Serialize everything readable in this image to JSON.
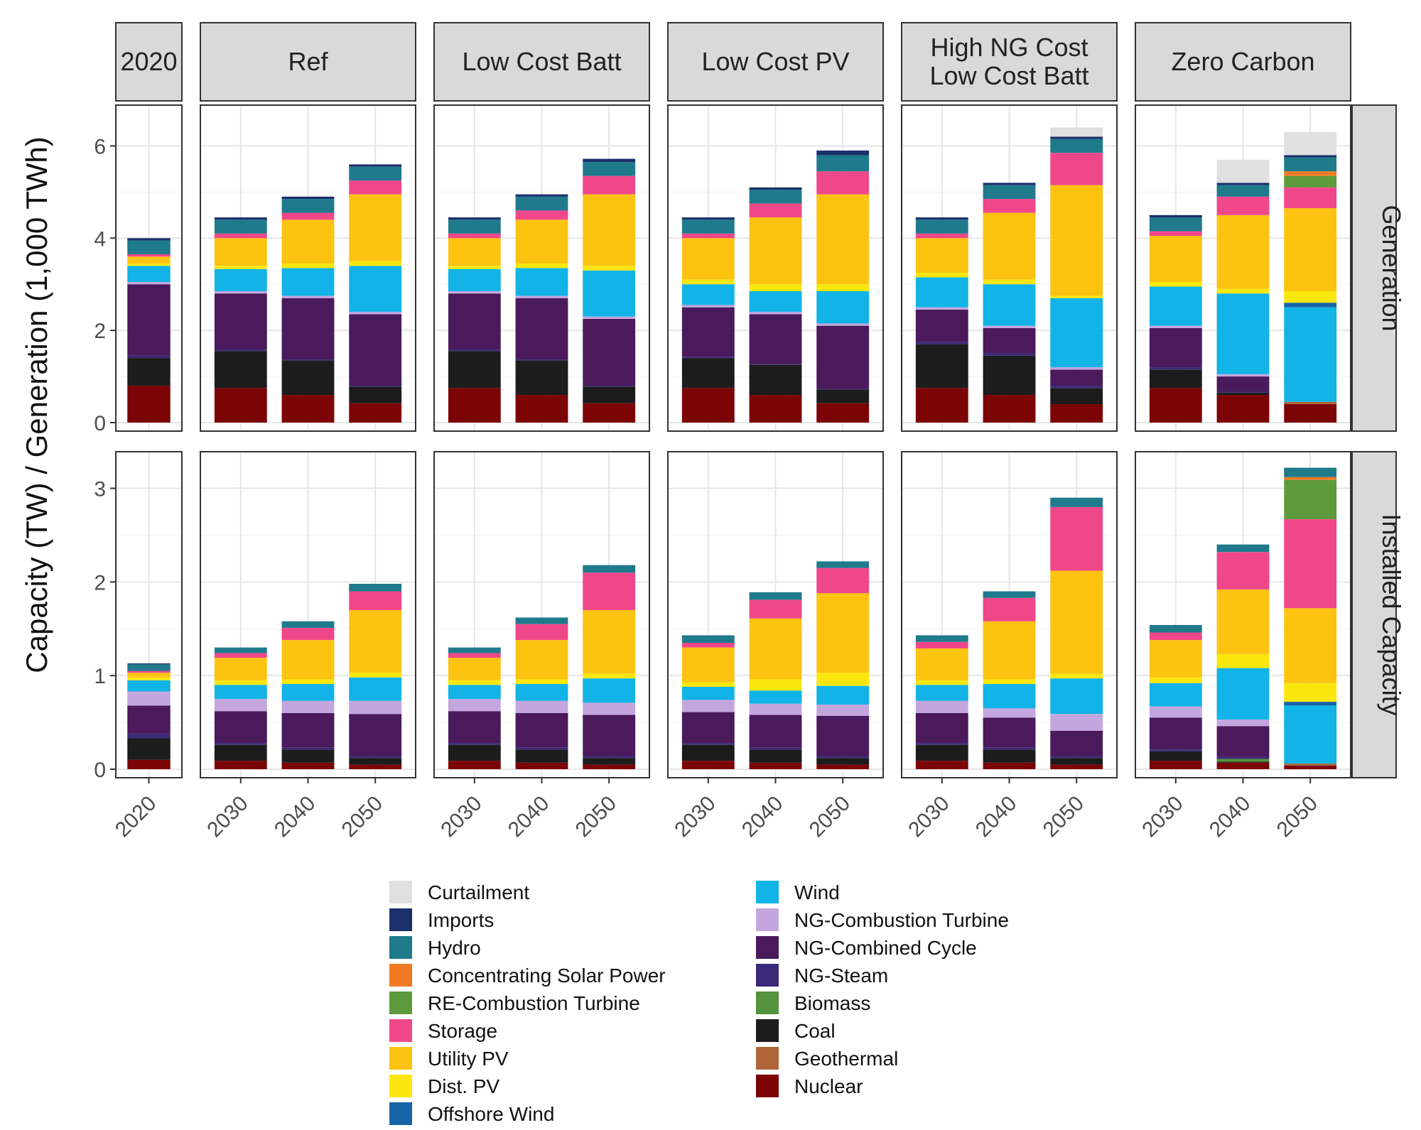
{
  "chart_data": {
    "type": "bar",
    "stacked": true,
    "ylabel": "Capacity (TW) / Generation (1,000 TWh)",
    "panel_groups": [
      "2020",
      "Ref",
      "Low Cost Batt",
      "Low Cost PV",
      "High NG Cost Low Cost Batt",
      "Zero Carbon"
    ],
    "group_labels": [
      [
        "2020"
      ],
      [
        "Ref"
      ],
      [
        "Low Cost Batt"
      ],
      [
        "Low Cost PV"
      ],
      [
        "High NG Cost",
        "Low Cost Batt"
      ],
      [
        "Zero Carbon"
      ]
    ],
    "rows": [
      {
        "label": "Generation",
        "ylim": [
          0,
          6.7
        ],
        "yticks": [
          "0",
          "2",
          "4",
          "6"
        ],
        "ytick_values": [
          0,
          2,
          4,
          6
        ]
      },
      {
        "label": "Installed Capacity",
        "ylim": [
          0,
          3.3
        ],
        "yticks": [
          "0",
          "1",
          "2",
          "3"
        ],
        "ytick_values": [
          0,
          1,
          2,
          3
        ]
      }
    ],
    "stack_order": [
      "Nuclear",
      "Geothermal",
      "Coal",
      "Biomass",
      "NG-Steam",
      "NG-Combined Cycle",
      "NG-Combustion Turbine",
      "Wind",
      "Offshore Wind",
      "Dist. PV",
      "Utility PV",
      "Storage",
      "RE-Combustion Turbine",
      "Concentrating Solar Power",
      "Hydro",
      "Imports",
      "Curtailment"
    ],
    "colors": {
      "Curtailment": "#e0e0e0",
      "Imports": "#1b2f6b",
      "Hydro": "#1f7a8c",
      "Concentrating Solar Power": "#f07a22",
      "RE-Combustion Turbine": "#5c9a3c",
      "Storage": "#f0478a",
      "Utility PV": "#fcc311",
      "Dist. PV": "#fbe70e",
      "Offshore Wind": "#1565a8",
      "Wind": "#12b3e6",
      "NG-Combustion Turbine": "#c4a6df",
      "NG-Combined Cycle": "#4a1a5c",
      "NG-Steam": "#3a2a78",
      "Biomass": "#55923d",
      "Coal": "#1c1c1c",
      "Geothermal": "#b0653a",
      "Nuclear": "#7d0405"
    },
    "legend": {
      "column1": [
        "Curtailment",
        "Imports",
        "Hydro",
        "Concentrating Solar Power",
        "RE-Combustion Turbine",
        "Storage",
        "Utility PV",
        "Dist. PV",
        "Offshore Wind"
      ],
      "column2": [
        "Wind",
        "NG-Combustion Turbine",
        "NG-Combined Cycle",
        "NG-Steam",
        "Biomass",
        "Coal",
        "Geothermal",
        "Nuclear"
      ]
    },
    "panels": [
      {
        "group": "2020",
        "row": "Generation",
        "bars": [
          {
            "x": "2020",
            "values": {
              "Nuclear": 0.8,
              "Coal": 0.6,
              "NG-Steam": 0.05,
              "NG-Combined Cycle": 1.55,
              "NG-Combustion Turbine": 0.05,
              "Wind": 0.35,
              "Utility PV": 0.15,
              "Dist. PV": 0.05,
              "Storage": 0.05,
              "Hydro": 0.3,
              "Imports": 0.05
            }
          }
        ]
      },
      {
        "group": "Ref",
        "row": "Generation",
        "bars": [
          {
            "x": "2030",
            "values": {
              "Nuclear": 0.75,
              "Coal": 0.8,
              "NG-Steam": 0.03,
              "NG-Combined Cycle": 1.22,
              "NG-Combustion Turbine": 0.05,
              "Wind": 0.48,
              "Dist. PV": 0.07,
              "Utility PV": 0.6,
              "Storage": 0.1,
              "Hydro": 0.3,
              "Imports": 0.05
            }
          },
          {
            "x": "2040",
            "values": {
              "Nuclear": 0.6,
              "Coal": 0.75,
              "NG-Steam": 0.02,
              "NG-Combined Cycle": 1.33,
              "NG-Combustion Turbine": 0.05,
              "Wind": 0.6,
              "Dist. PV": 0.1,
              "Utility PV": 0.95,
              "Storage": 0.15,
              "Hydro": 0.3,
              "Imports": 0.05
            }
          },
          {
            "x": "2050",
            "values": {
              "Nuclear": 0.42,
              "Coal": 0.36,
              "NG-Steam": 0.02,
              "NG-Combined Cycle": 1.55,
              "NG-Combustion Turbine": 0.05,
              "Wind": 1.0,
              "Dist. PV": 0.1,
              "Utility PV": 1.45,
              "Storage": 0.3,
              "Hydro": 0.3,
              "Imports": 0.05
            }
          }
        ]
      },
      {
        "group": "Low Cost Batt",
        "row": "Generation",
        "bars": [
          {
            "x": "2030",
            "values": {
              "Nuclear": 0.75,
              "Coal": 0.8,
              "NG-Steam": 0.03,
              "NG-Combined Cycle": 1.22,
              "NG-Combustion Turbine": 0.05,
              "Wind": 0.48,
              "Dist. PV": 0.07,
              "Utility PV": 0.6,
              "Storage": 0.1,
              "Hydro": 0.3,
              "Imports": 0.05
            }
          },
          {
            "x": "2040",
            "values": {
              "Nuclear": 0.6,
              "Coal": 0.75,
              "NG-Steam": 0.02,
              "NG-Combined Cycle": 1.33,
              "NG-Combustion Turbine": 0.05,
              "Wind": 0.6,
              "Dist. PV": 0.1,
              "Utility PV": 0.95,
              "Storage": 0.2,
              "Hydro": 0.3,
              "Imports": 0.05
            }
          },
          {
            "x": "2050",
            "values": {
              "Nuclear": 0.42,
              "Coal": 0.36,
              "NG-Steam": 0.02,
              "NG-Combined Cycle": 1.45,
              "NG-Combustion Turbine": 0.05,
              "Wind": 1.0,
              "Dist. PV": 0.1,
              "Utility PV": 1.55,
              "Storage": 0.4,
              "Hydro": 0.3,
              "Imports": 0.07
            }
          }
        ]
      },
      {
        "group": "Low Cost PV",
        "row": "Generation",
        "bars": [
          {
            "x": "2030",
            "values": {
              "Nuclear": 0.75,
              "Coal": 0.65,
              "NG-Steam": 0.03,
              "NG-Combined Cycle": 1.07,
              "NG-Combustion Turbine": 0.05,
              "Wind": 0.45,
              "Dist. PV": 0.1,
              "Utility PV": 0.9,
              "Storage": 0.1,
              "Hydro": 0.3,
              "Imports": 0.05
            }
          },
          {
            "x": "2040",
            "values": {
              "Nuclear": 0.6,
              "Coal": 0.65,
              "NG-Steam": 0.02,
              "NG-Combined Cycle": 1.08,
              "NG-Combustion Turbine": 0.05,
              "Wind": 0.45,
              "Dist. PV": 0.15,
              "Utility PV": 1.45,
              "Storage": 0.3,
              "Hydro": 0.3,
              "Imports": 0.05
            }
          },
          {
            "x": "2050",
            "values": {
              "Nuclear": 0.42,
              "Coal": 0.3,
              "NG-Steam": 0.02,
              "NG-Combined Cycle": 1.36,
              "NG-Combustion Turbine": 0.05,
              "Wind": 0.7,
              "Dist. PV": 0.15,
              "Utility PV": 1.95,
              "Storage": 0.5,
              "Hydro": 0.35,
              "Imports": 0.1
            }
          }
        ]
      },
      {
        "group": "High NG Cost Low Cost Batt",
        "row": "Generation",
        "bars": [
          {
            "x": "2030",
            "values": {
              "Nuclear": 0.75,
              "Coal": 0.95,
              "NG-Steam": 0.05,
              "NG-Combined Cycle": 0.7,
              "NG-Combustion Turbine": 0.05,
              "Wind": 0.65,
              "Dist. PV": 0.1,
              "Utility PV": 0.75,
              "Storage": 0.1,
              "Hydro": 0.3,
              "Imports": 0.05
            }
          },
          {
            "x": "2040",
            "values": {
              "Nuclear": 0.6,
              "Coal": 0.85,
              "NG-Steam": 0.05,
              "NG-Combined Cycle": 0.55,
              "NG-Combustion Turbine": 0.05,
              "Wind": 0.9,
              "Dist. PV": 0.1,
              "Utility PV": 1.45,
              "Storage": 0.3,
              "Hydro": 0.3,
              "Imports": 0.05
            }
          },
          {
            "x": "2050",
            "values": {
              "Nuclear": 0.4,
              "Coal": 0.35,
              "NG-Steam": 0.05,
              "NG-Combined Cycle": 0.35,
              "NG-Combustion Turbine": 0.05,
              "Wind": 1.5,
              "Dist. PV": 0.05,
              "Utility PV": 2.4,
              "Storage": 0.7,
              "Hydro": 0.3,
              "Imports": 0.05,
              "Curtailment": 0.2
            }
          }
        ]
      },
      {
        "group": "Zero Carbon",
        "row": "Generation",
        "bars": [
          {
            "x": "2030",
            "values": {
              "Nuclear": 0.75,
              "Coal": 0.4,
              "NG-Steam": 0.05,
              "NG-Combined Cycle": 0.85,
              "NG-Combustion Turbine": 0.05,
              "Wind": 0.85,
              "Dist. PV": 0.1,
              "Utility PV": 1.0,
              "Storage": 0.1,
              "Hydro": 0.3,
              "Imports": 0.05
            }
          },
          {
            "x": "2040",
            "values": {
              "Nuclear": 0.6,
              "Coal": 0.05,
              "NG-Steam": 0.02,
              "NG-Combined Cycle": 0.33,
              "NG-Combustion Turbine": 0.05,
              "Wind": 1.75,
              "Dist. PV": 0.1,
              "Utility PV": 1.6,
              "Storage": 0.4,
              "Hydro": 0.25,
              "Imports": 0.05,
              "Curtailment": 0.5
            }
          },
          {
            "x": "2050",
            "values": {
              "Nuclear": 0.4,
              "Wind": 2.05,
              "Offshore Wind": 0.1,
              "Dist. PV": 0.25,
              "Utility PV": 1.8,
              "Storage": 0.45,
              "RE-Combustion Turbine": 0.25,
              "Concentrating Solar Power": 0.1,
              "Geothermal": 0.05,
              "Hydro": 0.3,
              "Imports": 0.05,
              "Curtailment": 0.5
            }
          }
        ]
      },
      {
        "group": "2020",
        "row": "Installed Capacity",
        "bars": [
          {
            "x": "2020",
            "values": {
              "Nuclear": 0.1,
              "Coal": 0.23,
              "NG-Steam": 0.05,
              "NG-Combined Cycle": 0.3,
              "NG-Combustion Turbine": 0.15,
              "Wind": 0.12,
              "Dist. PV": 0.03,
              "Utility PV": 0.05,
              "Storage": 0.02,
              "Hydro": 0.07,
              "Imports": 0.01
            }
          }
        ]
      },
      {
        "group": "Ref",
        "row": "Installed Capacity",
        "bars": [
          {
            "x": "2030",
            "values": {
              "Nuclear": 0.09,
              "Coal": 0.17,
              "NG-Steam": 0.02,
              "NG-Combined Cycle": 0.34,
              "NG-Combustion Turbine": 0.13,
              "Wind": 0.15,
              "Dist. PV": 0.05,
              "Utility PV": 0.24,
              "Storage": 0.05,
              "Hydro": 0.06
            }
          },
          {
            "x": "2040",
            "values": {
              "Nuclear": 0.07,
              "Coal": 0.14,
              "NG-Steam": 0.02,
              "NG-Combined Cycle": 0.37,
              "NG-Combustion Turbine": 0.13,
              "Wind": 0.18,
              "Dist. PV": 0.05,
              "Utility PV": 0.42,
              "Storage": 0.13,
              "Hydro": 0.07
            }
          },
          {
            "x": "2050",
            "values": {
              "Nuclear": 0.05,
              "Coal": 0.07,
              "NG-Steam": 0.02,
              "NG-Combined Cycle": 0.45,
              "NG-Combustion Turbine": 0.14,
              "Wind": 0.25,
              "Dist. PV": 0.05,
              "Utility PV": 0.67,
              "Storage": 0.2,
              "Hydro": 0.08
            }
          }
        ]
      },
      {
        "group": "Low Cost Batt",
        "row": "Installed Capacity",
        "bars": [
          {
            "x": "2030",
            "values": {
              "Nuclear": 0.09,
              "Coal": 0.17,
              "NG-Steam": 0.02,
              "NG-Combined Cycle": 0.34,
              "NG-Combustion Turbine": 0.13,
              "Wind": 0.15,
              "Dist. PV": 0.05,
              "Utility PV": 0.24,
              "Storage": 0.05,
              "Hydro": 0.06
            }
          },
          {
            "x": "2040",
            "values": {
              "Nuclear": 0.07,
              "Coal": 0.14,
              "NG-Steam": 0.02,
              "NG-Combined Cycle": 0.37,
              "NG-Combustion Turbine": 0.13,
              "Wind": 0.18,
              "Dist. PV": 0.05,
              "Utility PV": 0.42,
              "Storage": 0.17,
              "Hydro": 0.07
            }
          },
          {
            "x": "2050",
            "values": {
              "Nuclear": 0.05,
              "Coal": 0.07,
              "NG-Steam": 0.02,
              "NG-Combined Cycle": 0.44,
              "NG-Combustion Turbine": 0.13,
              "Wind": 0.26,
              "Dist. PV": 0.05,
              "Utility PV": 0.68,
              "Storage": 0.4,
              "Hydro": 0.08
            }
          }
        ]
      },
      {
        "group": "Low Cost PV",
        "row": "Installed Capacity",
        "bars": [
          {
            "x": "2030",
            "values": {
              "Nuclear": 0.09,
              "Coal": 0.17,
              "NG-Steam": 0.02,
              "NG-Combined Cycle": 0.33,
              "NG-Combustion Turbine": 0.13,
              "Wind": 0.14,
              "Dist. PV": 0.05,
              "Utility PV": 0.37,
              "Storage": 0.05,
              "Hydro": 0.08
            }
          },
          {
            "x": "2040",
            "values": {
              "Nuclear": 0.07,
              "Coal": 0.14,
              "NG-Steam": 0.02,
              "NG-Combined Cycle": 0.35,
              "NG-Combustion Turbine": 0.12,
              "Wind": 0.14,
              "Dist. PV": 0.12,
              "Utility PV": 0.65,
              "Storage": 0.2,
              "Hydro": 0.08
            }
          },
          {
            "x": "2050",
            "values": {
              "Nuclear": 0.05,
              "Coal": 0.07,
              "NG-Steam": 0.02,
              "NG-Combined Cycle": 0.43,
              "NG-Combustion Turbine": 0.12,
              "Wind": 0.2,
              "Dist. PV": 0.14,
              "Utility PV": 0.85,
              "Storage": 0.27,
              "Hydro": 0.07
            }
          }
        ]
      },
      {
        "group": "High NG Cost Low Cost Batt",
        "row": "Installed Capacity",
        "bars": [
          {
            "x": "2030",
            "values": {
              "Nuclear": 0.09,
              "Coal": 0.17,
              "NG-Steam": 0.02,
              "NG-Combined Cycle": 0.32,
              "NG-Combustion Turbine": 0.13,
              "Wind": 0.17,
              "Dist. PV": 0.05,
              "Utility PV": 0.34,
              "Storage": 0.07,
              "Hydro": 0.07
            }
          },
          {
            "x": "2040",
            "values": {
              "Nuclear": 0.07,
              "Coal": 0.14,
              "NG-Steam": 0.02,
              "NG-Combined Cycle": 0.32,
              "NG-Combustion Turbine": 0.1,
              "Wind": 0.26,
              "Dist. PV": 0.05,
              "Utility PV": 0.62,
              "Storage": 0.25,
              "Hydro": 0.07
            }
          },
          {
            "x": "2050",
            "values": {
              "Nuclear": 0.05,
              "Coal": 0.07,
              "NG-Steam": 0.02,
              "NG-Combined Cycle": 0.27,
              "NG-Combustion Turbine": 0.18,
              "Wind": 0.38,
              "Dist. PV": 0.05,
              "Utility PV": 1.1,
              "Storage": 0.68,
              "Hydro": 0.1
            }
          }
        ]
      },
      {
        "group": "Zero Carbon",
        "row": "Installed Capacity",
        "bars": [
          {
            "x": "2030",
            "values": {
              "Nuclear": 0.09,
              "Coal": 0.1,
              "NG-Steam": 0.02,
              "NG-Combined Cycle": 0.34,
              "NG-Combustion Turbine": 0.12,
              "Wind": 0.25,
              "Dist. PV": 0.06,
              "Utility PV": 0.4,
              "Storage": 0.08,
              "Hydro": 0.08
            }
          },
          {
            "x": "2040",
            "values": {
              "Nuclear": 0.07,
              "Coal": 0.01,
              "NG-Steam": 0.02,
              "NG-Combined Cycle": 0.33,
              "NG-Combustion Turbine": 0.07,
              "Wind": 0.55,
              "Dist. PV": 0.15,
              "Utility PV": 0.69,
              "Storage": 0.4,
              "Biomass": 0.03,
              "Hydro": 0.08
            }
          },
          {
            "x": "2050",
            "values": {
              "Nuclear": 0.04,
              "Wind": 0.62,
              "Offshore Wind": 0.04,
              "Dist. PV": 0.2,
              "Utility PV": 0.8,
              "Storage": 0.95,
              "RE-Combustion Turbine": 0.42,
              "Concentrating Solar Power": 0.03,
              "Geothermal": 0.02,
              "Hydro": 0.1
            }
          }
        ]
      }
    ]
  }
}
